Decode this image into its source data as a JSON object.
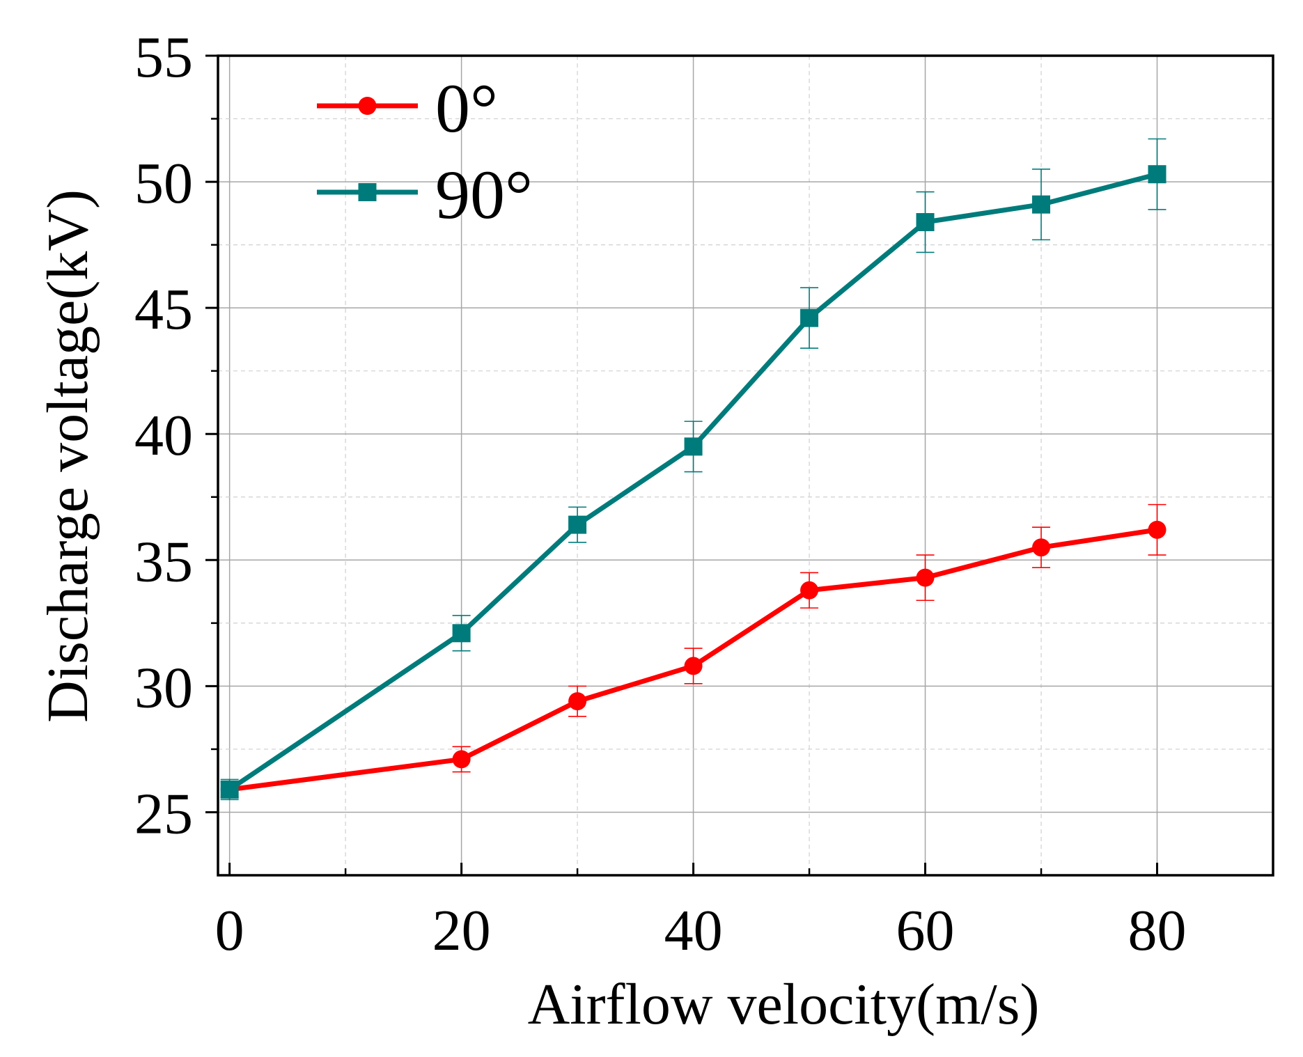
{
  "chart_data": {
    "type": "line",
    "title": "",
    "xlabel": "Airflow velocity(m/s)",
    "ylabel": "Discharge voltage(kV)",
    "xlim": [
      -1,
      90
    ],
    "ylim": [
      22.5,
      55
    ],
    "xticks": [
      0,
      20,
      40,
      60,
      80
    ],
    "xminor": [
      10,
      30,
      50,
      70
    ],
    "yticks": [
      25,
      30,
      35,
      40,
      45,
      50,
      55
    ],
    "yminor": [
      27.5,
      32.5,
      37.5,
      42.5,
      47.5,
      52.5
    ],
    "x_tick_labels": [
      "0",
      "20",
      "40",
      "60",
      "80"
    ],
    "y_tick_labels": [
      "25",
      "30",
      "35",
      "40",
      "45",
      "50",
      "55"
    ],
    "grid": true,
    "legend_position": "top-left",
    "series": [
      {
        "name": "0°",
        "color": "#ff0000",
        "marker": "circle",
        "x": [
          0,
          20,
          30,
          40,
          50,
          60,
          70,
          80
        ],
        "values": [
          25.9,
          27.1,
          29.4,
          30.8,
          33.8,
          34.3,
          35.5,
          36.2
        ],
        "errors": [
          0.3,
          0.5,
          0.6,
          0.7,
          0.7,
          0.9,
          0.8,
          1.0
        ]
      },
      {
        "name": "90°",
        "color": "#007b7b",
        "marker": "square",
        "x": [
          0,
          20,
          30,
          40,
          50,
          60,
          70,
          80
        ],
        "values": [
          25.9,
          32.1,
          36.4,
          39.5,
          44.6,
          48.4,
          49.1,
          50.3
        ],
        "errors": [
          0.4,
          0.7,
          0.7,
          1.0,
          1.2,
          1.2,
          1.4,
          1.4
        ]
      }
    ]
  }
}
